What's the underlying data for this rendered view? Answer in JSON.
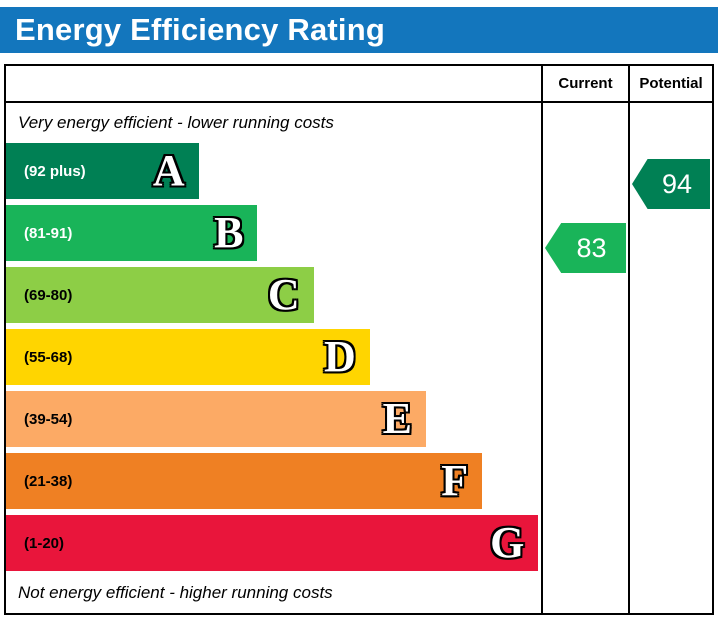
{
  "title": "Energy Efficiency Rating",
  "colors": {
    "title_bar": "#1376bd",
    "title_text": "#ffffff",
    "border": "#000000"
  },
  "header": {
    "current": "Current",
    "potential": "Potential"
  },
  "notes": {
    "top": "Very energy efficient - lower running costs",
    "bottom": "Not energy efficient - higher running costs"
  },
  "chart_data": {
    "type": "bar",
    "title": "Energy Efficiency Rating",
    "layout": "horizontal-epc-bands",
    "bands": [
      {
        "letter": "A",
        "range": "(92 plus)",
        "color": "#008054",
        "text_color": "#ffffff",
        "width_pct": 36
      },
      {
        "letter": "B",
        "range": "(81-91)",
        "color": "#19b459",
        "text_color": "#ffffff",
        "width_pct": 47
      },
      {
        "letter": "C",
        "range": "(69-80)",
        "color": "#8dce46",
        "text_color": "#000000",
        "width_pct": 57.5
      },
      {
        "letter": "D",
        "range": "(55-68)",
        "color": "#ffd500",
        "text_color": "#000000",
        "width_pct": 68
      },
      {
        "letter": "E",
        "range": "(39-54)",
        "color": "#fcaa65",
        "text_color": "#000000",
        "width_pct": 78.5
      },
      {
        "letter": "F",
        "range": "(21-38)",
        "color": "#ef8023",
        "text_color": "#000000",
        "width_pct": 89
      },
      {
        "letter": "G",
        "range": "(1-20)",
        "color": "#e9153b",
        "text_color": "#000000",
        "width_pct": 99.5
      }
    ],
    "current": {
      "label": "Current",
      "value": 83,
      "band": "B",
      "color": "#19b459"
    },
    "potential": {
      "label": "Potential",
      "value": 94,
      "band": "A",
      "color": "#008054"
    }
  }
}
